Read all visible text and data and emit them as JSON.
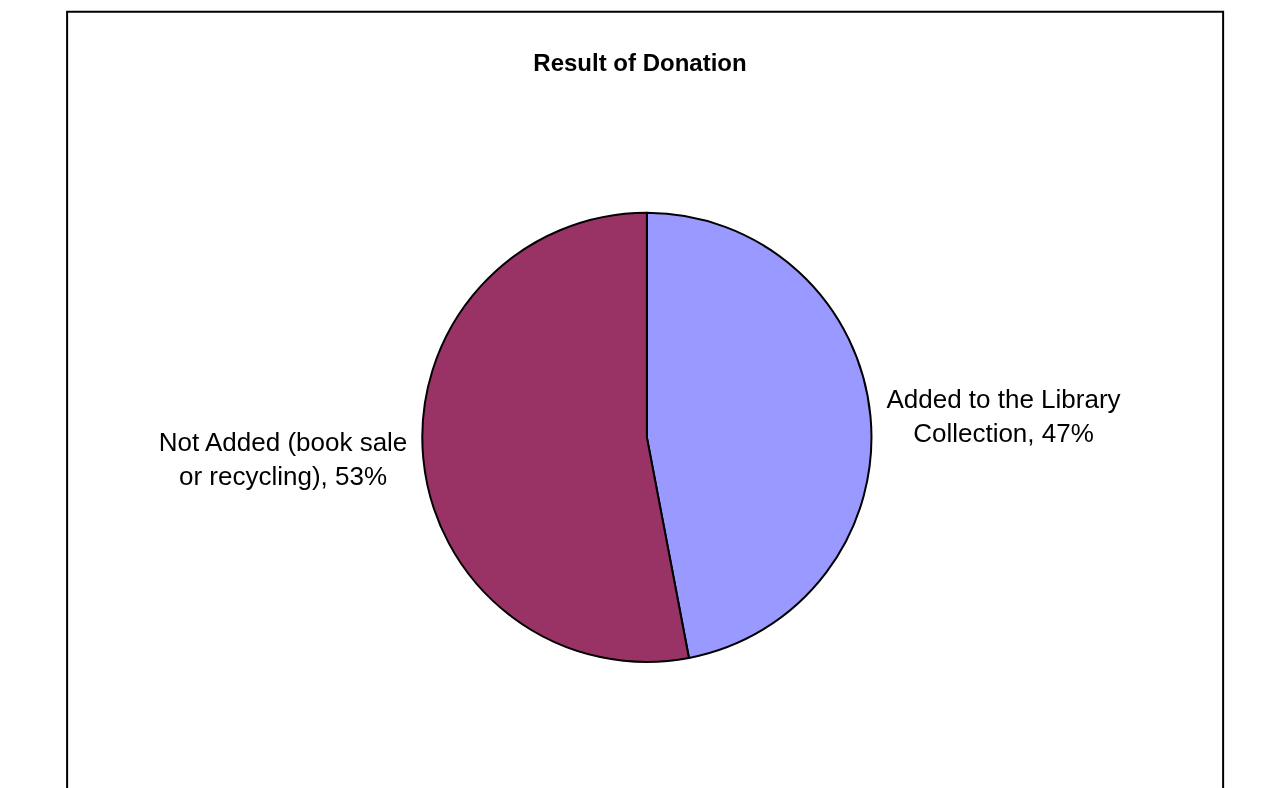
{
  "chart_data": {
    "type": "pie",
    "title": "Result of Donation",
    "categories": [
      "Added to the Library Collection, 47%",
      "Not Added (book sale or recycling), 53%"
    ],
    "values": [
      47,
      53
    ],
    "colors": [
      "#9999ff",
      "#993366"
    ],
    "legend": false
  }
}
